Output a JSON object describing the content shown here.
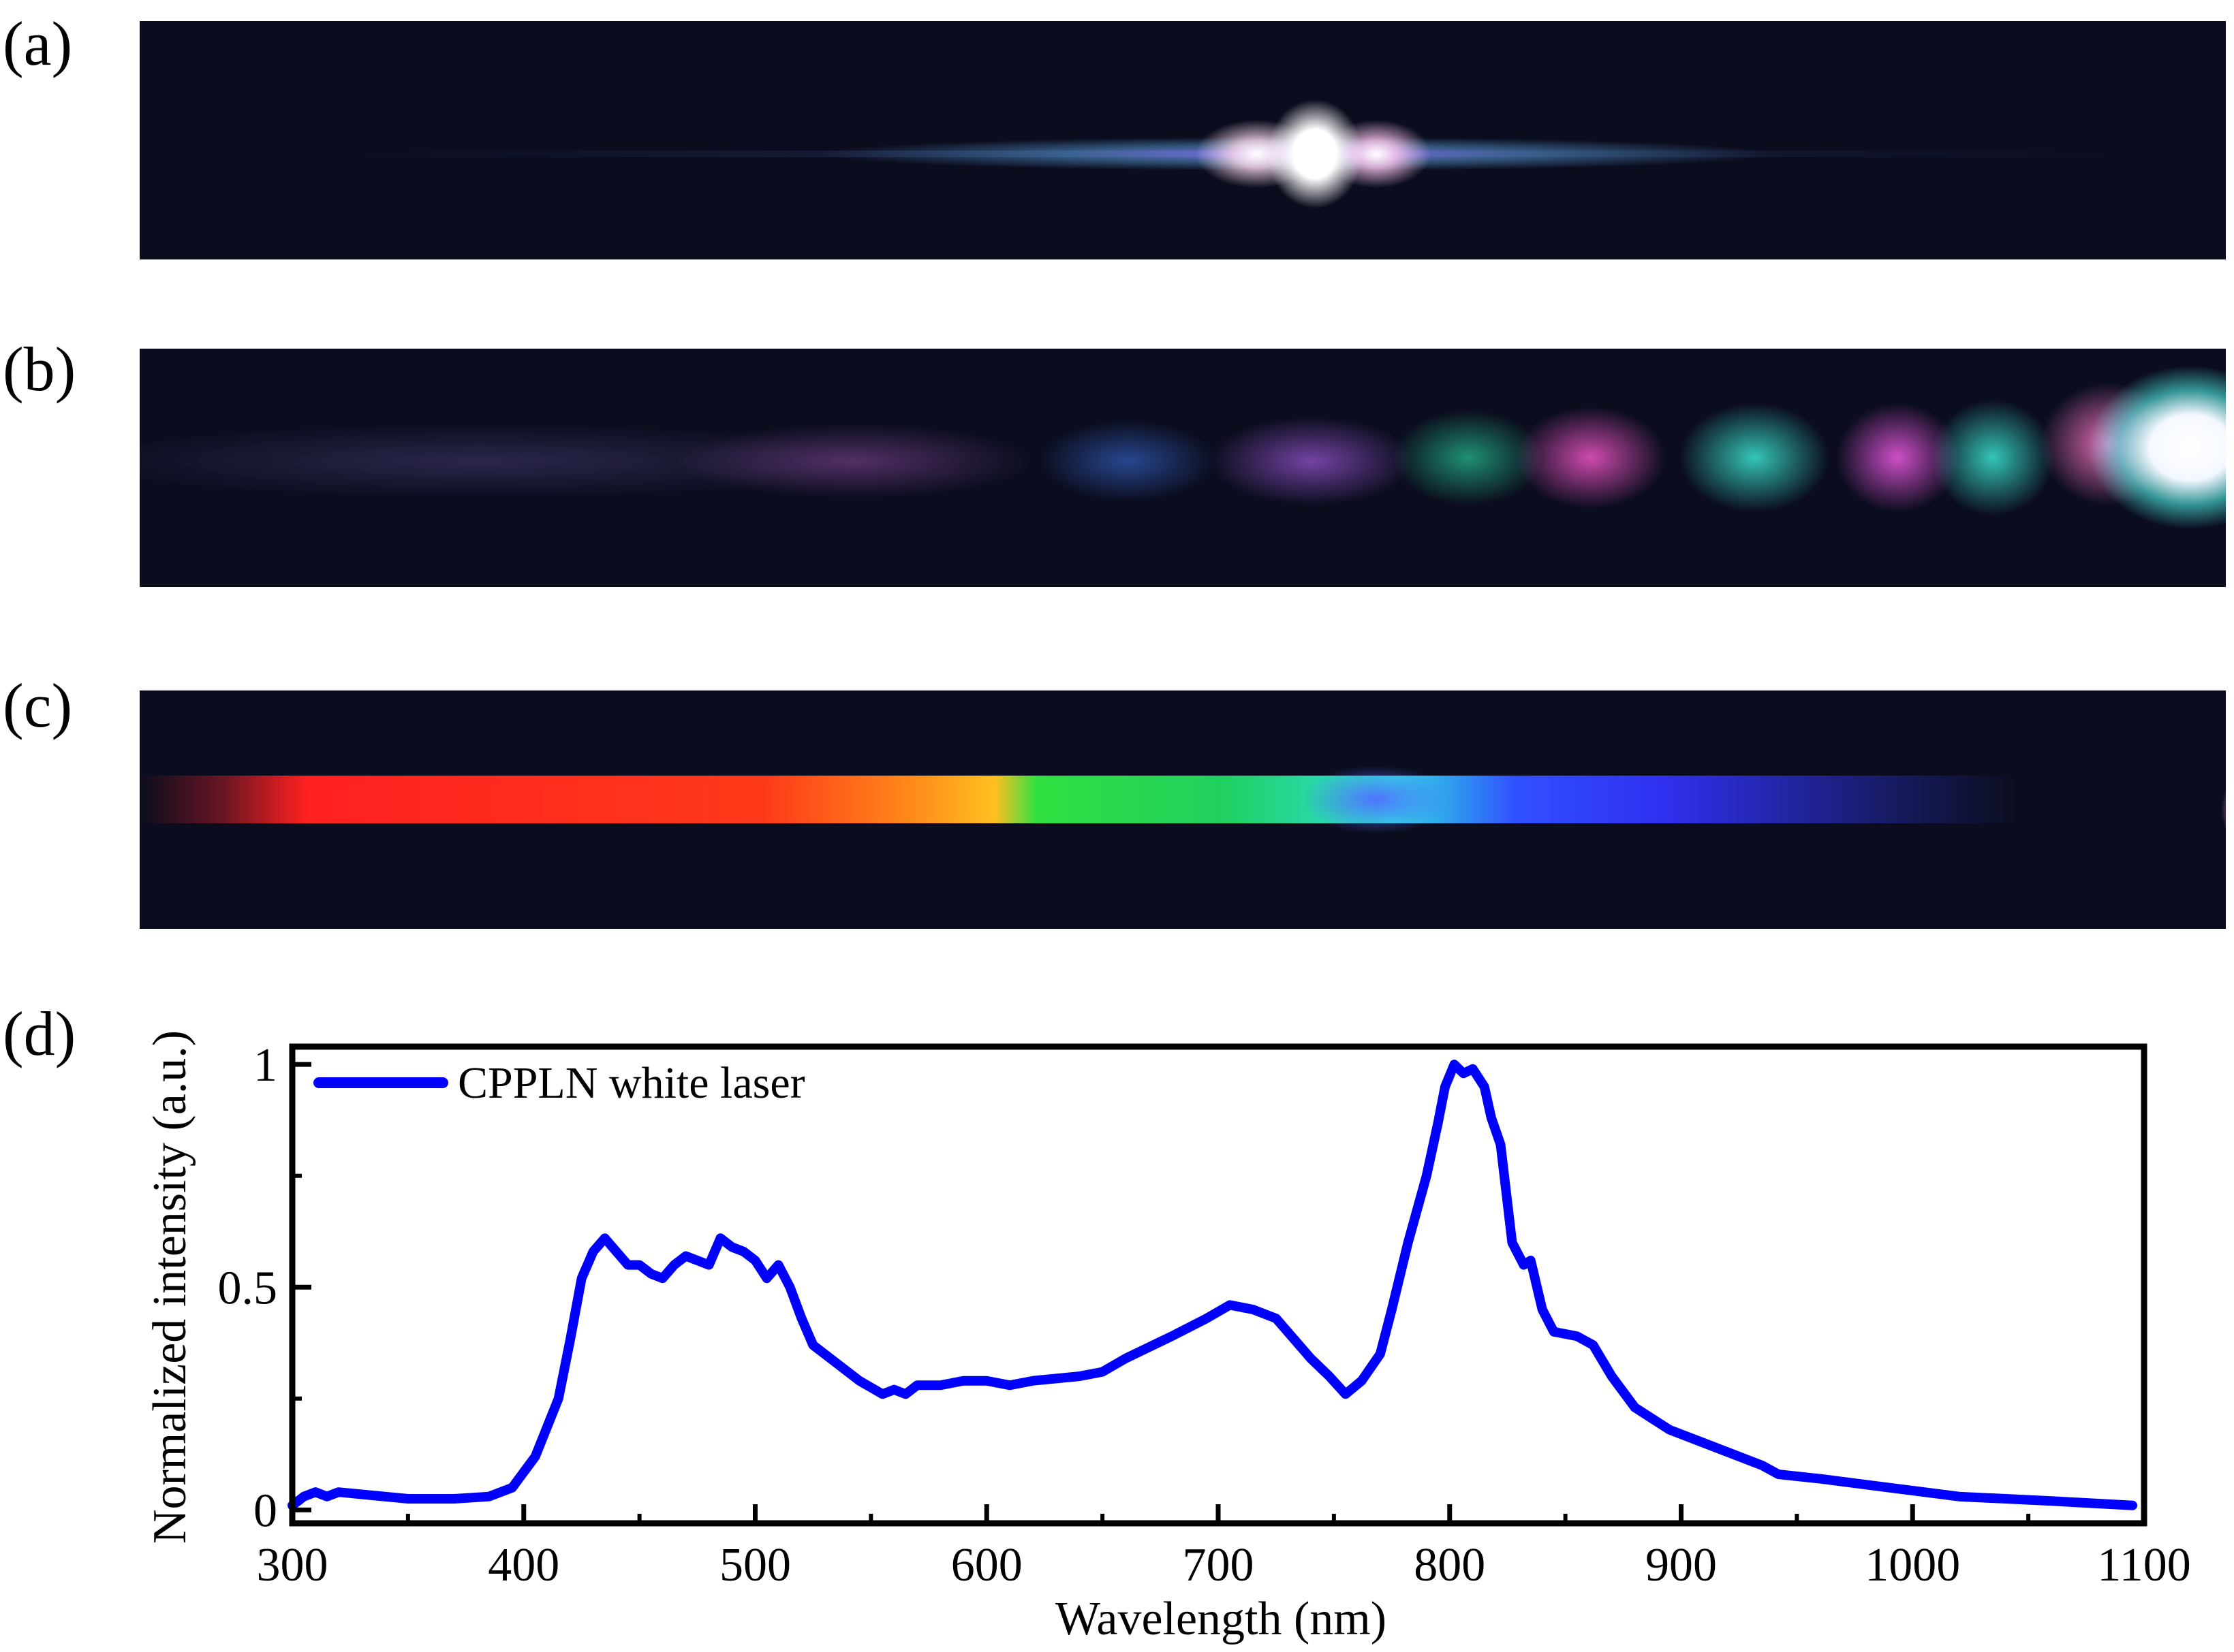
{
  "panels": {
    "a": {
      "label": "(a)"
    },
    "b": {
      "label": "(b)"
    },
    "c": {
      "label": "(c)"
    },
    "d": {
      "label": "(d)"
    }
  },
  "chart_data": {
    "type": "line",
    "title": "",
    "xlabel": "Wavelength (nm)",
    "ylabel": "Normalized intensity (a.u.)",
    "xlim": [
      300,
      1100
    ],
    "ylim": [
      -0.03,
      1.04
    ],
    "xticks": [
      "300",
      "400",
      "500",
      "600",
      "700",
      "800",
      "900",
      "1000",
      "1100"
    ],
    "yticks": [
      "0",
      "0.5",
      "1"
    ],
    "grid": false,
    "legend_position": "top-left",
    "series": [
      {
        "name": "CPPLN white laser",
        "color": "#0000ff",
        "x": [
          300,
          305,
          310,
          315,
          320,
          330,
          350,
          370,
          385,
          395,
          405,
          415,
          420,
          425,
          430,
          435,
          440,
          445,
          450,
          455,
          460,
          465,
          470,
          475,
          480,
          485,
          490,
          495,
          500,
          505,
          510,
          515,
          520,
          525,
          535,
          545,
          555,
          560,
          565,
          570,
          580,
          590,
          600,
          610,
          620,
          640,
          650,
          660,
          680,
          695,
          705,
          715,
          725,
          735,
          740,
          748,
          755,
          762,
          770,
          775,
          782,
          790,
          795,
          798,
          802,
          806,
          810,
          815,
          818,
          822,
          827,
          832,
          835,
          840,
          845,
          855,
          862,
          870,
          880,
          895,
          915,
          935,
          942,
          960,
          990,
          1020,
          1060,
          1095
        ],
        "y": [
          0.01,
          0.03,
          0.04,
          0.03,
          0.04,
          0.035,
          0.025,
          0.025,
          0.03,
          0.05,
          0.12,
          0.25,
          0.38,
          0.52,
          0.58,
          0.61,
          0.58,
          0.55,
          0.55,
          0.53,
          0.52,
          0.55,
          0.57,
          0.56,
          0.55,
          0.61,
          0.59,
          0.58,
          0.56,
          0.52,
          0.55,
          0.5,
          0.43,
          0.37,
          0.33,
          0.29,
          0.26,
          0.27,
          0.26,
          0.28,
          0.28,
          0.29,
          0.29,
          0.28,
          0.29,
          0.3,
          0.31,
          0.34,
          0.39,
          0.43,
          0.46,
          0.45,
          0.43,
          0.37,
          0.34,
          0.3,
          0.26,
          0.29,
          0.35,
          0.45,
          0.6,
          0.75,
          0.87,
          0.95,
          1.0,
          0.98,
          0.99,
          0.95,
          0.88,
          0.82,
          0.6,
          0.55,
          0.56,
          0.45,
          0.4,
          0.39,
          0.37,
          0.3,
          0.23,
          0.18,
          0.14,
          0.1,
          0.08,
          0.07,
          0.05,
          0.03,
          0.02,
          0.01
        ]
      }
    ]
  }
}
